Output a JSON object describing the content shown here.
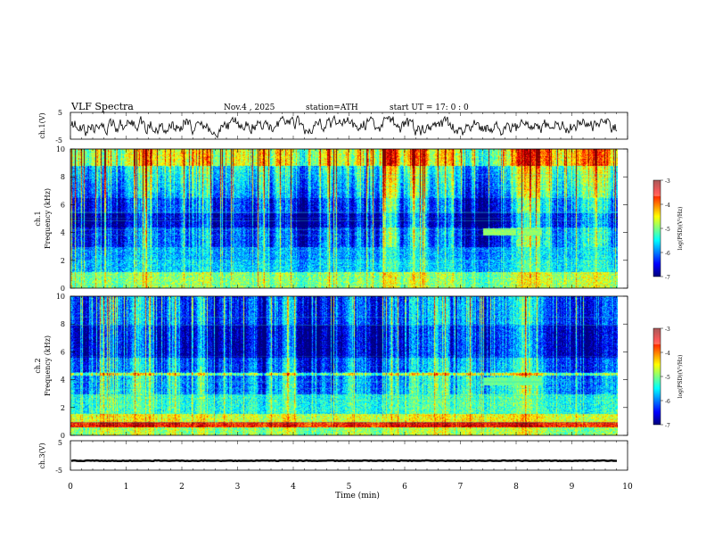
{
  "header": {
    "title": "VLF  Spectra",
    "date": "Nov.4  , 2025",
    "station": "station=ATH",
    "start": "start  UT  =    17: 0   : 0"
  },
  "chart_data": [
    {
      "type": "line",
      "name": "ch1-waveform",
      "ylabel": "ch.1(V)",
      "ylim": [
        -5,
        5
      ],
      "yticks": [
        "5",
        "-5"
      ]
    },
    {
      "type": "heatmap",
      "name": "ch1-spectrogram",
      "ylabel": "ch.1\nFrequency  (kHz)",
      "ylabel_line1": "ch.1",
      "ylabel_line2": "Frequency  (kHz)",
      "ylim": [
        0,
        10
      ],
      "yticks": [
        "0",
        "2",
        "4",
        "6",
        "8",
        "10"
      ],
      "colorbar": {
        "label": "log(PSD)(V²/Hz)",
        "range": [
          -7,
          -3
        ],
        "ticks": [
          "-3",
          "-4",
          "-5",
          "-6",
          "-7"
        ]
      },
      "features": [
        {
          "kind": "band",
          "freq_khz": 4.0,
          "t_start_min": 7.4,
          "t_end_min": 8.0
        },
        {
          "kind": "band",
          "freq_khz": 4.0,
          "t_start_min": 8.1,
          "t_end_min": 8.45
        }
      ]
    },
    {
      "type": "heatmap",
      "name": "ch2-spectrogram",
      "ylabel_line1": "ch.2",
      "ylabel_line2": "Frequency  (kHz)",
      "ylim": [
        0,
        10
      ],
      "yticks": [
        "0",
        "2",
        "4",
        "6",
        "8",
        "10"
      ],
      "colorbar": {
        "label": "log(PSD)(V²/Hz)",
        "range": [
          -7,
          -3
        ],
        "ticks": [
          "-3",
          "-4",
          "-5",
          "-6",
          "-7"
        ]
      }
    },
    {
      "type": "line",
      "name": "ch3-waveform",
      "ylabel": "ch.3(V)",
      "ylim": [
        -5,
        5
      ],
      "yticks": [
        "5",
        "-5"
      ],
      "level_v": -1.8
    }
  ],
  "xaxis": {
    "label": "Time  (min)",
    "range": [
      0,
      10
    ],
    "ticks": [
      "0",
      "1",
      "2",
      "3",
      "4",
      "5",
      "6",
      "7",
      "8",
      "9",
      "10"
    ],
    "data_end_min": 9.82
  }
}
